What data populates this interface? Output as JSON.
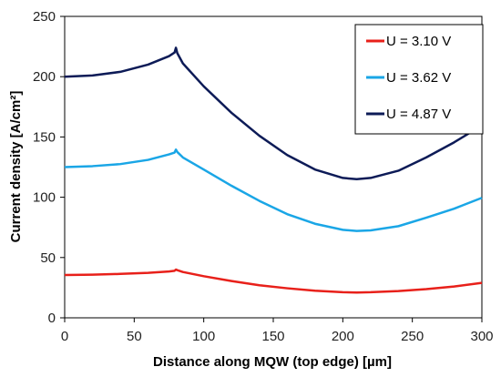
{
  "chart_data": {
    "type": "line",
    "title": "",
    "xlabel": "Distance along MQW (top edge) [µm]",
    "ylabel": "Current density [A/cm²]",
    "xlim": [
      0,
      300
    ],
    "ylim": [
      0,
      250
    ],
    "xticks": [
      "0",
      "50",
      "100",
      "150",
      "200",
      "250",
      "300"
    ],
    "yticks": [
      "0",
      "50",
      "100",
      "150",
      "200",
      "250"
    ],
    "legend_position": "top-right",
    "grid": false,
    "series": [
      {
        "name": "U = 3.10 V",
        "color": "#e8201a",
        "x": [
          0,
          20,
          40,
          60,
          75,
          79,
          80,
          81,
          85,
          100,
          120,
          140,
          160,
          180,
          200,
          210,
          220,
          240,
          260,
          280,
          300
        ],
        "y": [
          35.5,
          35.8,
          36.4,
          37.3,
          38.4,
          39,
          40,
          39.5,
          38,
          34.5,
          30.5,
          27,
          24.5,
          22.5,
          21.2,
          21,
          21.2,
          22.2,
          23.8,
          26,
          29
        ]
      },
      {
        "name": "U = 3.62 V",
        "color": "#1aa6e6",
        "x": [
          0,
          20,
          40,
          60,
          75,
          79,
          80,
          81,
          85,
          100,
          120,
          140,
          160,
          180,
          200,
          210,
          220,
          240,
          260,
          280,
          300
        ],
        "y": [
          125,
          125.8,
          127.5,
          131,
          135.5,
          137,
          139.5,
          137.5,
          133,
          123,
          109.5,
          97,
          86,
          78,
          73,
          72,
          72.5,
          76,
          83,
          90.5,
          99.5
        ]
      },
      {
        "name": "U = 4.87 V",
        "color": "#0d1b57",
        "x": [
          0,
          20,
          40,
          60,
          75,
          79,
          80,
          81,
          85,
          100,
          120,
          140,
          160,
          180,
          200,
          210,
          220,
          240,
          260,
          280,
          300
        ],
        "y": [
          200,
          201,
          204,
          210,
          217,
          220,
          224,
          219.5,
          211,
          192,
          170,
          151,
          135,
          123,
          116,
          115,
          116,
          122,
          133,
          145.5,
          159.5
        ]
      }
    ]
  }
}
